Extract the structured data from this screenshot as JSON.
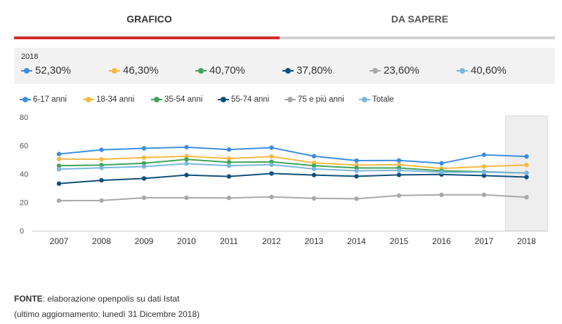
{
  "tabs": [
    {
      "label": "GRAFICO",
      "active": true
    },
    {
      "label": "DA SAPERE",
      "active": false
    }
  ],
  "summary": {
    "year": "2018",
    "values": [
      "52,30%",
      "46,30%",
      "40,70%",
      "37,80%",
      "23,60%",
      "40,60%"
    ]
  },
  "colors": {
    "accent": "#d42a2a",
    "series": [
      "#3d8ee0",
      "#f7b844",
      "#3fa457",
      "#0d4f7a",
      "#a8a8a8",
      "#7ab8e0"
    ],
    "highlight_band": "#eeeeee"
  },
  "chart_data": {
    "type": "line",
    "x": [
      "2007",
      "2008",
      "2009",
      "2010",
      "2011",
      "2012",
      "2013",
      "2014",
      "2015",
      "2016",
      "2017",
      "2018"
    ],
    "ylim": [
      0,
      80
    ],
    "yticks": [
      "0",
      "20",
      "40",
      "60",
      "80"
    ],
    "grid": false,
    "legend_position": "top-left",
    "highlighted_x": "2018",
    "series": [
      {
        "name": "6-17 anni",
        "values": [
          54,
          57,
          58,
          58.8,
          57.2,
          58.5,
          52.5,
          49.4,
          49.5,
          47.5,
          53.5,
          52.3
        ]
      },
      {
        "name": "18-34 anni",
        "values": [
          50.5,
          50.3,
          51.5,
          52.5,
          50.8,
          52.3,
          47.8,
          46.2,
          46.5,
          43.8,
          45.2,
          46.3
        ]
      },
      {
        "name": "35-54 anni",
        "values": [
          45.8,
          46.2,
          47.5,
          50.2,
          48.2,
          48.5,
          45.8,
          44.2,
          44.2,
          42.2,
          41.5,
          40.7
        ]
      },
      {
        "name": "55-74 anni",
        "values": [
          33.2,
          35.5,
          36.8,
          39.2,
          38.2,
          40.3,
          39.2,
          38.3,
          39.3,
          39.6,
          38.8,
          37.8
        ]
      },
      {
        "name": "75 e più anni",
        "values": [
          21.2,
          21.3,
          23.2,
          23.2,
          23.1,
          23.8,
          22.8,
          22.5,
          24.8,
          25.3,
          25.3,
          23.6
        ]
      },
      {
        "name": "Totale",
        "values": [
          43.3,
          44.3,
          45.2,
          47.2,
          45.8,
          46.5,
          43.5,
          42.2,
          42.5,
          41.2,
          41.2,
          40.6
        ]
      }
    ]
  },
  "source": {
    "label": "FONTE",
    "text": ": elaborazione openpolis su dati Istat",
    "updated": "(ultimo aggiornamento: lunedì 31 Dicembre 2018)"
  }
}
